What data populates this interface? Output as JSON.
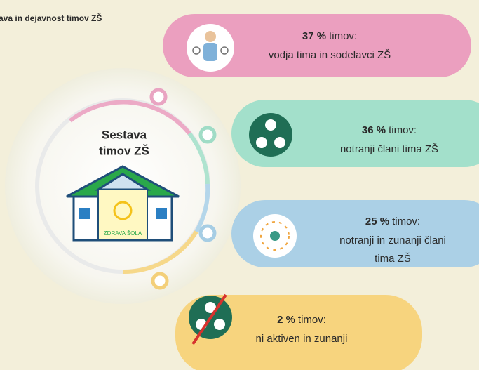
{
  "title": "ava in dejavnost timov ZŠ",
  "center": {
    "lines": [
      "Sestava",
      "timov ZŠ"
    ],
    "sign": "ZDRAVA ŠOLA"
  },
  "items": [
    {
      "percent": "37 %",
      "unit": "timov:",
      "lines": [
        "vodja tima in sodelavci ZŠ"
      ]
    },
    {
      "percent": "36 %",
      "unit": "timov:",
      "lines": [
        "notranji člani tima ZŠ"
      ]
    },
    {
      "percent": "25 %",
      "unit": "timov:",
      "lines": [
        "notranji in zunanji člani",
        "tima ZŠ"
      ]
    },
    {
      "percent": "2 %",
      "unit": "timov:",
      "lines": [
        "ni aktiven in zunanji"
      ]
    }
  ]
}
